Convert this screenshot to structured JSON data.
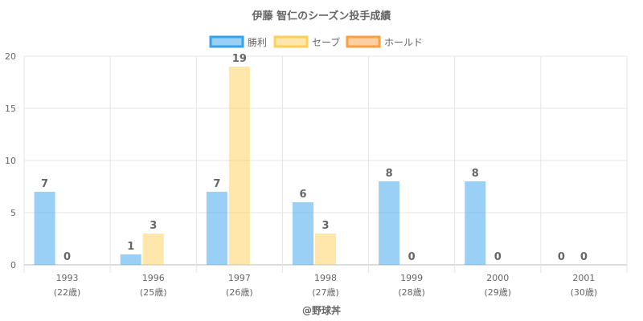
{
  "chart_data": {
    "type": "bar",
    "title": "伊藤 智仁のシーズン投手成績",
    "categories": [
      "1993",
      "1996",
      "1997",
      "1998",
      "1999",
      "2000",
      "2001"
    ],
    "sublabels": [
      "(22歳)",
      "(25歳)",
      "(26歳)",
      "(27歳)",
      "(28歳)",
      "(29歳)",
      "(30歳)"
    ],
    "series": [
      {
        "name": "勝利",
        "values": [
          7,
          1,
          7,
          6,
          8,
          8,
          0
        ],
        "color": "#36a2eb"
      },
      {
        "name": "セーブ",
        "values": [
          0,
          3,
          19,
          3,
          0,
          0,
          0
        ],
        "color": "#ffce56"
      },
      {
        "name": "ホールド",
        "values": [
          null,
          null,
          null,
          null,
          null,
          null,
          null
        ],
        "color": "#ff9f40"
      }
    ],
    "ylim": [
      0,
      20
    ],
    "yticks": [
      0,
      5,
      10,
      15,
      20
    ],
    "grid": true,
    "legend": "top",
    "footer": "@野球丼"
  }
}
